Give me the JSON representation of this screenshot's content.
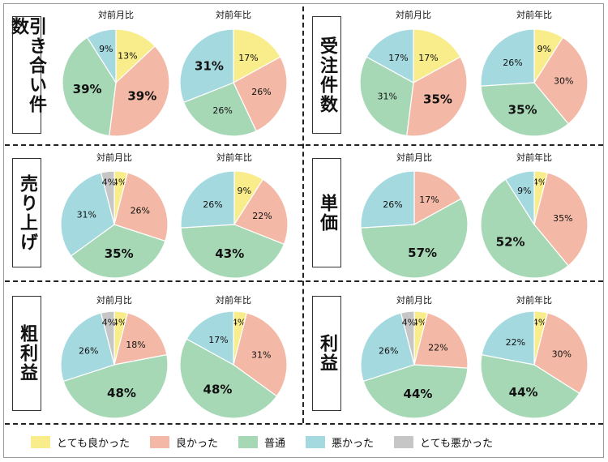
{
  "colors": {
    "とても良かった": "#f9ec8a",
    "良かった": "#f3b9a6",
    "普通": "#a7d8b6",
    "悪かった": "#a5d9e0",
    "とても悪かった": "#c6c6c6"
  },
  "legend": [
    {
      "label": "とても良かった",
      "color": "#f9ec8a"
    },
    {
      "label": "良かった",
      "color": "#f3b9a6"
    },
    {
      "label": "普通",
      "color": "#a7d8b6"
    },
    {
      "label": "悪かった",
      "color": "#a5d9e0"
    },
    {
      "label": "とても悪かった",
      "color": "#c6c6c6"
    }
  ],
  "sections": [
    {
      "title": "引き合い件数"
    },
    {
      "title": "受注件数"
    },
    {
      "title": "売り上げ"
    },
    {
      "title": "単価"
    },
    {
      "title": "粗利益"
    },
    {
      "title": "利益"
    }
  ],
  "chart_data": [
    {
      "type": "pie",
      "section": "引き合い件数",
      "title": "対前月比",
      "categories": [
        "とても良かった",
        "良かった",
        "普通",
        "悪かった",
        "とても悪かった"
      ],
      "values": [
        13,
        39,
        39,
        9,
        0
      ],
      "labels": [
        "13%",
        "39%",
        "39%",
        "9%",
        ""
      ],
      "bold": [
        false,
        true,
        true,
        false,
        false
      ]
    },
    {
      "type": "pie",
      "section": "引き合い件数",
      "title": "対前年比",
      "categories": [
        "とても良かった",
        "良かった",
        "普通",
        "悪かった",
        "とても悪かった"
      ],
      "values": [
        17,
        26,
        26,
        31,
        0
      ],
      "labels": [
        "17%",
        "26%",
        "26%",
        "31%",
        ""
      ],
      "bold": [
        false,
        false,
        false,
        true,
        false
      ]
    },
    {
      "type": "pie",
      "section": "受注件数",
      "title": "対前月比",
      "categories": [
        "とても良かった",
        "良かった",
        "普通",
        "悪かった",
        "とても悪かった"
      ],
      "values": [
        17,
        35,
        31,
        17,
        0
      ],
      "labels": [
        "17%",
        "35%",
        "31%",
        "17%",
        ""
      ],
      "bold": [
        false,
        true,
        false,
        false,
        false
      ]
    },
    {
      "type": "pie",
      "section": "受注件数",
      "title": "対前年比",
      "categories": [
        "とても良かった",
        "良かった",
        "普通",
        "悪かった",
        "とても悪かった"
      ],
      "values": [
        9,
        30,
        35,
        26,
        0
      ],
      "labels": [
        "9%",
        "30%",
        "35%",
        "26%",
        ""
      ],
      "bold": [
        false,
        false,
        true,
        false,
        false
      ]
    },
    {
      "type": "pie",
      "section": "売り上げ",
      "title": "対前月比",
      "categories": [
        "とても良かった",
        "良かった",
        "普通",
        "悪かった",
        "とても悪かった"
      ],
      "values": [
        4,
        26,
        35,
        31,
        4
      ],
      "labels": [
        "4%",
        "26%",
        "35%",
        "31%",
        "4%"
      ],
      "bold": [
        false,
        false,
        true,
        false,
        false
      ]
    },
    {
      "type": "pie",
      "section": "売り上げ",
      "title": "対前年比",
      "categories": [
        "とても良かった",
        "良かった",
        "普通",
        "悪かった",
        "とても悪かった"
      ],
      "values": [
        9,
        22,
        43,
        26,
        0
      ],
      "labels": [
        "9%",
        "22%",
        "43%",
        "26%",
        ""
      ],
      "bold": [
        false,
        false,
        true,
        false,
        false
      ]
    },
    {
      "type": "pie",
      "section": "単価",
      "title": "対前月比",
      "categories": [
        "とても良かった",
        "良かった",
        "普通",
        "悪かった",
        "とても悪かった"
      ],
      "values": [
        0,
        17,
        57,
        26,
        0
      ],
      "labels": [
        "",
        "17%",
        "57%",
        "26%",
        ""
      ],
      "bold": [
        false,
        false,
        true,
        false,
        false
      ]
    },
    {
      "type": "pie",
      "section": "単価",
      "title": "対前年比",
      "categories": [
        "とても良かった",
        "良かった",
        "普通",
        "悪かった",
        "とても悪かった"
      ],
      "values": [
        4,
        35,
        52,
        9,
        0
      ],
      "labels": [
        "4%",
        "35%",
        "52%",
        "9%",
        ""
      ],
      "bold": [
        false,
        false,
        true,
        false,
        false
      ]
    },
    {
      "type": "pie",
      "section": "粗利益",
      "title": "対前月比",
      "categories": [
        "とても良かった",
        "良かった",
        "普通",
        "悪かった",
        "とても悪かった"
      ],
      "values": [
        4,
        18,
        48,
        26,
        4
      ],
      "labels": [
        "4%",
        "18%",
        "48%",
        "26%",
        "4%"
      ],
      "bold": [
        false,
        false,
        true,
        false,
        false
      ]
    },
    {
      "type": "pie",
      "section": "粗利益",
      "title": "対前年比",
      "categories": [
        "とても良かった",
        "良かった",
        "普通",
        "悪かった",
        "とても悪かった"
      ],
      "values": [
        4,
        31,
        48,
        17,
        0
      ],
      "labels": [
        "4%",
        "31%",
        "48%",
        "17%",
        ""
      ],
      "bold": [
        false,
        false,
        true,
        false,
        false
      ]
    },
    {
      "type": "pie",
      "section": "利益",
      "title": "対前月比",
      "categories": [
        "とても良かった",
        "良かった",
        "普通",
        "悪かった",
        "とても悪かった"
      ],
      "values": [
        4,
        22,
        44,
        26,
        4
      ],
      "labels": [
        "4%",
        "22%",
        "44%",
        "26%",
        "4%"
      ],
      "bold": [
        false,
        false,
        true,
        false,
        false
      ]
    },
    {
      "type": "pie",
      "section": "利益",
      "title": "対前年比",
      "categories": [
        "とても良かった",
        "良かった",
        "普通",
        "悪かった",
        "とても悪かった"
      ],
      "values": [
        4,
        30,
        44,
        22,
        0
      ],
      "labels": [
        "4%",
        "30%",
        "44%",
        "22%",
        ""
      ],
      "bold": [
        false,
        false,
        true,
        false,
        false
      ]
    }
  ]
}
